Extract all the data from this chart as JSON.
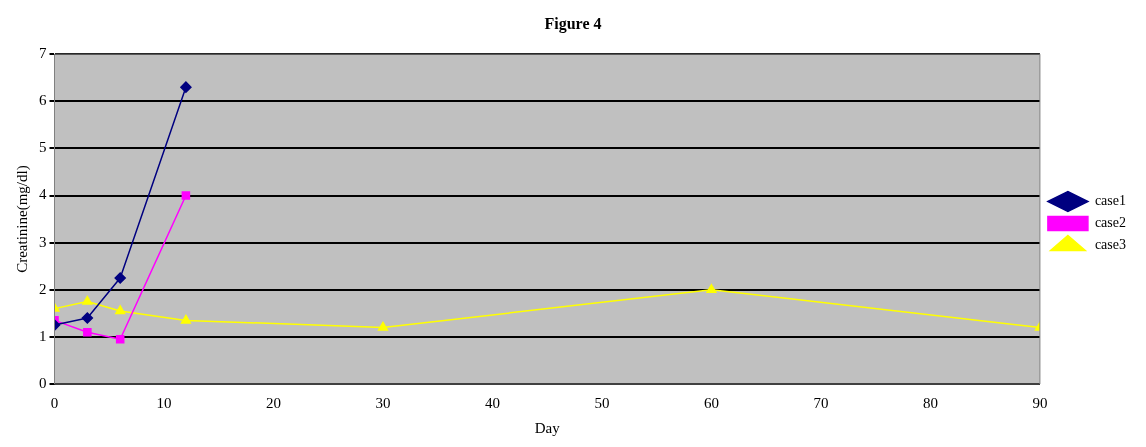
{
  "chart_data": {
    "type": "line",
    "title": "Figure 4",
    "xlabel": "Day",
    "ylabel": "Creatinine(mg/dl)",
    "xlim": [
      0,
      90
    ],
    "xticks": [
      0,
      10,
      20,
      30,
      40,
      50,
      60,
      70,
      80,
      90
    ],
    "ylim": [
      0,
      7
    ],
    "yticks": [
      0,
      1,
      2,
      3,
      4,
      5,
      6,
      7
    ],
    "grid": "y",
    "legend": "right",
    "series": [
      {
        "name": "case1",
        "color": "#000080",
        "marker": "diamond",
        "x": [
          0,
          3,
          6,
          12
        ],
        "values": [
          1.25,
          1.4,
          2.25,
          6.3
        ]
      },
      {
        "name": "case2",
        "color": "#ff00ff",
        "marker": "square",
        "x": [
          0,
          3,
          6,
          12
        ],
        "values": [
          1.35,
          1.1,
          0.95,
          4.0
        ]
      },
      {
        "name": "case3",
        "color": "#ffff00",
        "marker": "triangle",
        "x": [
          0,
          3,
          6,
          12,
          30,
          60,
          90
        ],
        "values": [
          1.6,
          1.75,
          1.55,
          1.35,
          1.2,
          2.0,
          1.2
        ]
      }
    ]
  }
}
